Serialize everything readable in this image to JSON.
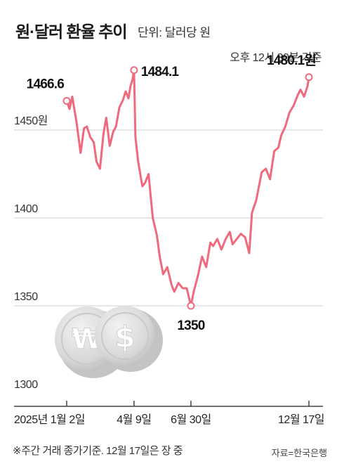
{
  "header": {
    "title": "원·달러 환율 추이",
    "unit": "단위: 달러당 원",
    "basis": "오후 12시 30분 기준"
  },
  "footer": {
    "note": "※주간 거래 종가기준. 12월 17일은 장 중",
    "source": "자료=한국은행"
  },
  "colors": {
    "line": "#f0697c",
    "grid": "#cfcfcf",
    "axis": "#444444",
    "coin": "#d9d9d9"
  },
  "icons": [
    "won-coin-icon",
    "dollar-coin-icon"
  ],
  "chart_data": {
    "type": "line",
    "title": "원·달러 환율 추이",
    "ylabel": "단위: 달러당 원",
    "ylim": [
      1300,
      1500
    ],
    "yticks": [
      {
        "value": 1300,
        "label": "1300"
      },
      {
        "value": 1350,
        "label": "1350"
      },
      {
        "value": 1400,
        "label": "1400"
      },
      {
        "value": 1450,
        "label": "1450원"
      }
    ],
    "xlim": [
      "2025-01-02",
      "2025-12-17"
    ],
    "xticks": [
      {
        "date": "2025-01-02",
        "label": "2025년 1월 2일"
      },
      {
        "date": "2025-04-09",
        "label": "4월 9일"
      },
      {
        "date": "2025-06-30",
        "label": "6월 30일"
      },
      {
        "date": "2025-12-17",
        "label": "12월 17일"
      }
    ],
    "grid": true,
    "annotations": [
      {
        "date": "2025-01-02",
        "value": 1466.6,
        "label": "1466.6"
      },
      {
        "date": "2025-04-09",
        "value": 1484.1,
        "label": "1484.1"
      },
      {
        "date": "2025-06-30",
        "value": 1350,
        "label": "1350"
      },
      {
        "date": "2025-12-17",
        "value": 1480.1,
        "label": "1480.1원"
      }
    ],
    "series": [
      {
        "x": [
          "2025-01-02",
          "2025-01-06",
          "2025-01-10",
          "2025-01-16",
          "2025-01-22",
          "2025-01-27",
          "2025-01-31",
          "2025-02-05",
          "2025-02-10",
          "2025-02-14",
          "2025-02-19",
          "2025-02-24",
          "2025-02-28",
          "2025-03-05",
          "2025-03-10",
          "2025-03-14",
          "2025-03-19",
          "2025-03-24",
          "2025-03-28",
          "2025-04-01",
          "2025-04-04",
          "2025-04-07",
          "2025-04-09",
          "2025-04-11",
          "2025-04-15",
          "2025-04-21",
          "2025-04-25",
          "2025-04-30",
          "2025-05-06",
          "2025-05-12",
          "2025-05-16",
          "2025-05-21",
          "2025-05-27",
          "2025-06-02",
          "2025-06-06",
          "2025-06-12",
          "2025-06-18",
          "2025-06-24",
          "2025-06-30",
          "2025-07-04",
          "2025-07-10",
          "2025-07-16",
          "2025-07-22",
          "2025-07-28",
          "2025-08-01",
          "2025-08-07",
          "2025-08-13",
          "2025-08-19",
          "2025-08-25",
          "2025-08-29",
          "2025-09-04",
          "2025-09-10",
          "2025-09-16",
          "2025-09-22",
          "2025-09-26",
          "2025-10-02",
          "2025-10-10",
          "2025-10-16",
          "2025-10-22",
          "2025-10-28",
          "2025-11-03",
          "2025-11-07",
          "2025-11-13",
          "2025-11-19",
          "2025-11-25",
          "2025-12-01",
          "2025-12-05",
          "2025-12-10",
          "2025-12-15",
          "2025-12-17"
        ],
        "values": [
          1466.6,
          1462,
          1469,
          1455,
          1437,
          1451,
          1452,
          1446,
          1443,
          1432,
          1428,
          1448,
          1457,
          1441,
          1449,
          1452,
          1463,
          1467,
          1472,
          1468,
          1475,
          1479,
          1484.1,
          1446,
          1432,
          1418,
          1420,
          1425,
          1400,
          1390,
          1378,
          1368,
          1372,
          1362,
          1358,
          1363,
          1360,
          1360,
          1350,
          1358,
          1367,
          1378,
          1372,
          1386,
          1384,
          1388,
          1382,
          1388,
          1392,
          1385,
          1388,
          1391,
          1389,
          1380,
          1403,
          1410,
          1426,
          1428,
          1422,
          1438,
          1440,
          1447,
          1452,
          1460,
          1464,
          1470,
          1473,
          1469,
          1475,
          1480.1
        ]
      }
    ]
  }
}
